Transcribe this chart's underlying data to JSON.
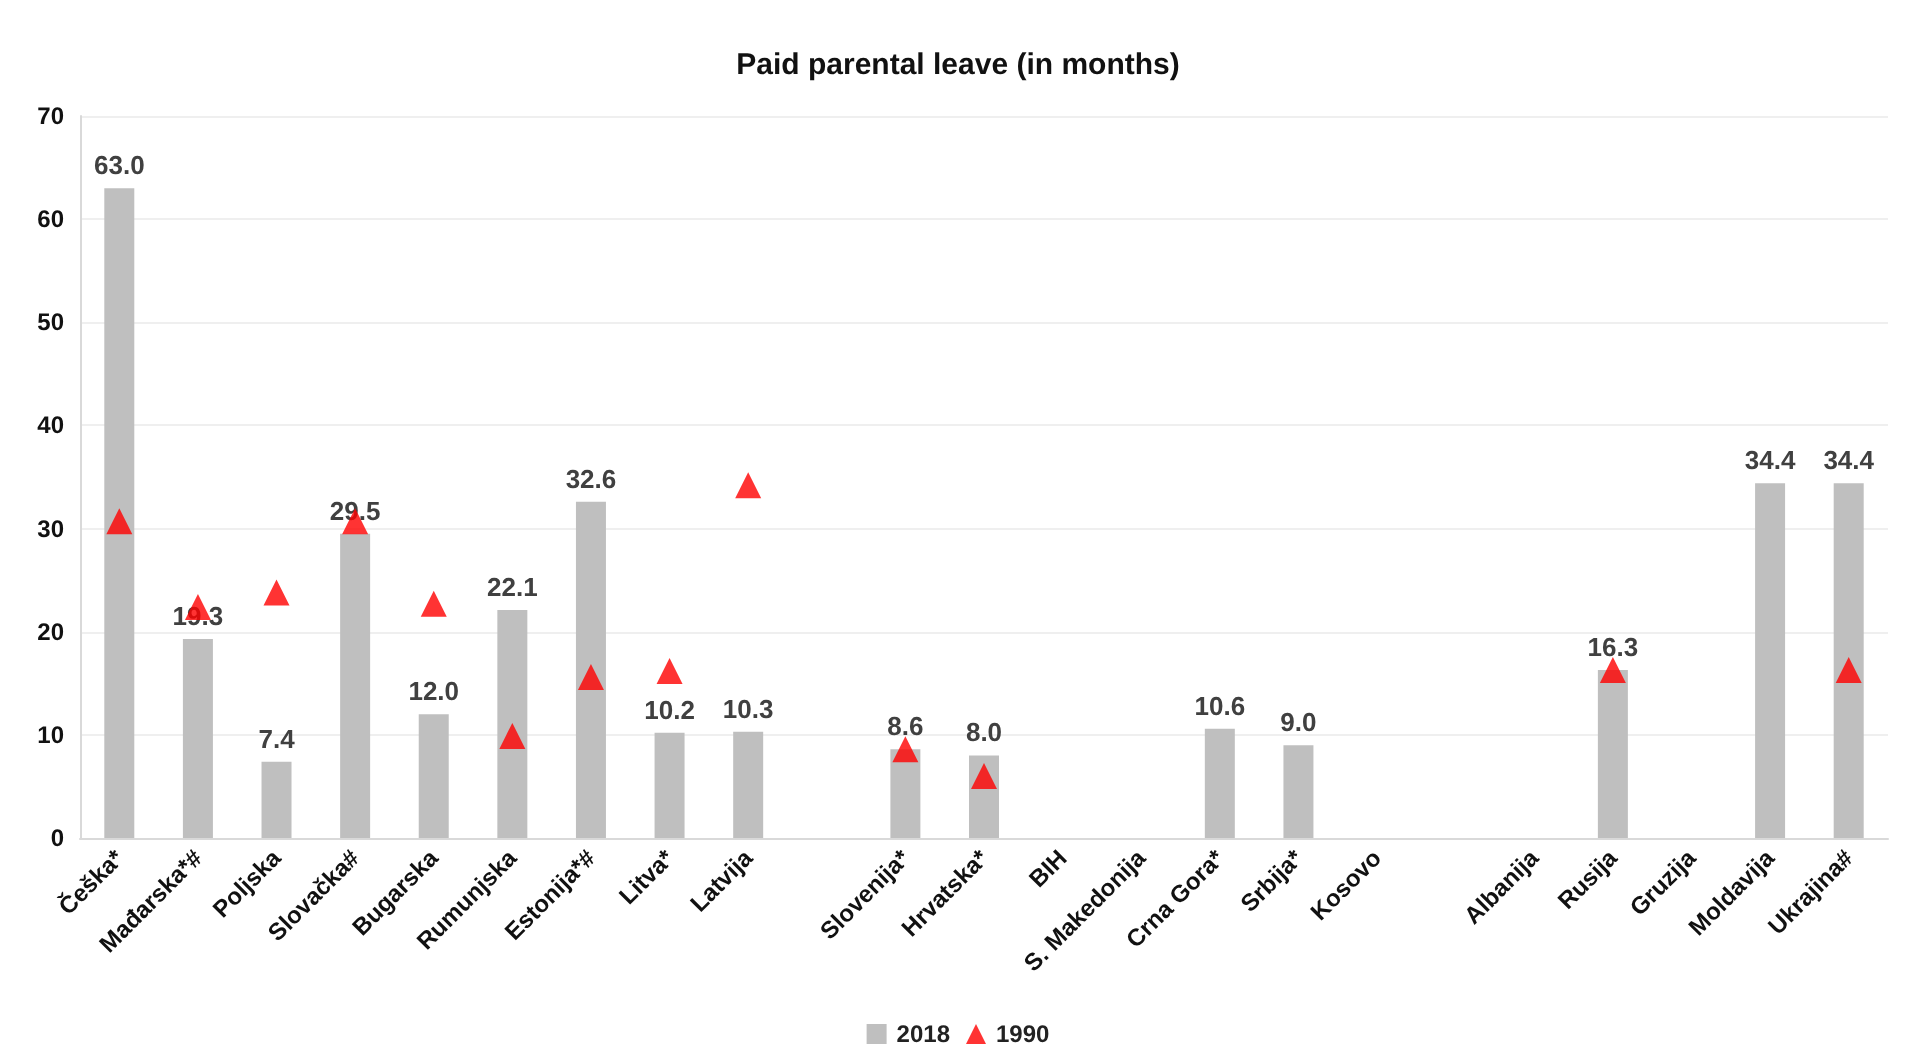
{
  "chart_data": {
    "type": "bar",
    "title": "Paid parental leave (in months)",
    "categories": [
      "Češka*",
      "Mađarska*#",
      "Poljska",
      "Slovačka#",
      "Bugarska",
      "Rumunjska",
      "Estonija*#",
      "Litva*",
      "Latvija",
      null,
      "Slovenija*",
      "Hrvatska*",
      "BIH",
      "S. Makedonija",
      "Crna Gora*",
      "Srbija*",
      "Kosovo",
      null,
      "Albanija",
      "Rusija",
      "Gruzija",
      "Moldavija",
      "Ukrajina#"
    ],
    "series": [
      {
        "name": "2018",
        "color": "#bfbfbf",
        "values": [
          63.0,
          19.3,
          7.4,
          29.5,
          12.0,
          22.1,
          32.6,
          10.2,
          10.3,
          null,
          8.6,
          8.0,
          null,
          null,
          10.6,
          9.0,
          null,
          null,
          null,
          16.3,
          null,
          34.4,
          34.4
        ],
        "value_labels": [
          "63.0",
          "19.3",
          "7.4",
          "29.5",
          "12.0",
          "22.1",
          "32.6",
          "10.2",
          "10.3",
          null,
          "8.6",
          "8.0",
          null,
          null,
          "10.6",
          "9.0",
          null,
          null,
          null,
          "16.3",
          null,
          "34.4",
          "34.4"
        ]
      },
      {
        "name": "1990",
        "type": "scatter",
        "color": "#ff0000",
        "marker": "triangle",
        "values": [
          30.7,
          22.4,
          23.8,
          30.7,
          22.7,
          9.9,
          15.6,
          16.2,
          34.2,
          null,
          8.6,
          6.0,
          null,
          null,
          null,
          null,
          null,
          null,
          null,
          16.3,
          null,
          null,
          16.3
        ]
      }
    ],
    "ylim": [
      0,
      70
    ],
    "yticks": [
      0,
      10,
      20,
      30,
      40,
      50,
      60,
      70
    ],
    "grid": "y",
    "legend": "bottom"
  }
}
